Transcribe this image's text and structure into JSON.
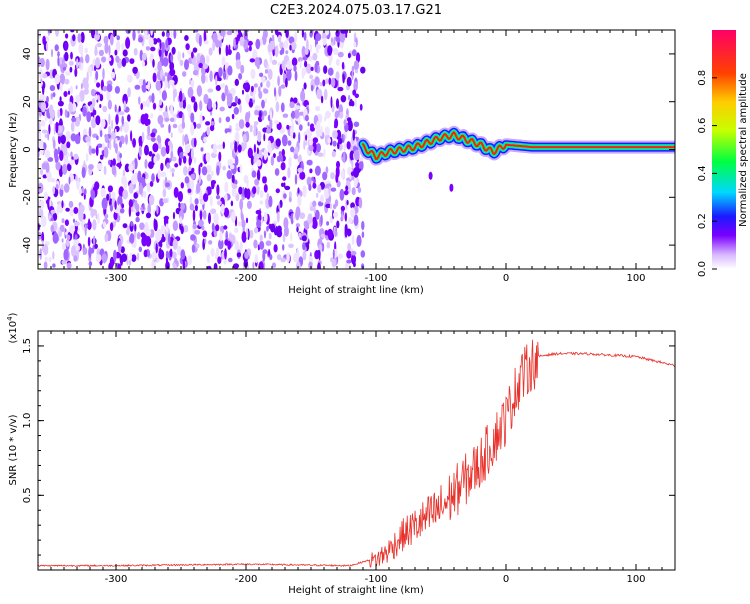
{
  "title": "C2E3.2024.075.03.17.G21",
  "chart_data": [
    {
      "type": "heatmap",
      "xlabel": "Height of straight line (km)",
      "ylabel": "Frequency (Hz)",
      "xlim": [
        -360,
        130
      ],
      "ylim": [
        -50,
        50
      ],
      "xticks": [
        -300,
        -200,
        -100,
        0,
        100
      ],
      "yticks": [
        -40,
        -20,
        0,
        20,
        40
      ],
      "noise_region": [
        -360,
        -110
      ],
      "signal_curve": {
        "x": [
          -110,
          -100,
          -90,
          -80,
          -70,
          -60,
          -50,
          -40,
          -30,
          -20,
          -10,
          0,
          20,
          50,
          80,
          100,
          130
        ],
        "y": [
          1,
          -3,
          -1,
          0,
          1,
          3,
          5,
          6,
          4,
          2,
          -1,
          2,
          1,
          1,
          1,
          1,
          1
        ]
      },
      "colorbar": {
        "label": "Normalized spectral amplitude",
        "range": [
          0,
          1
        ],
        "ticks": [
          "0.0",
          "0.2",
          "0.4",
          "0.6",
          "0.8"
        ]
      },
      "colors": {
        "noise": "#7a00ff",
        "signal_core": "#ff1a1a"
      }
    },
    {
      "type": "line",
      "xlabel": "Height of straight line (km)",
      "ylabel": "SNR (10 * v/v)",
      "multiplier": "(x10",
      "multiplier_exp": "4",
      "multiplier_close": ")",
      "xlim": [
        -360,
        130
      ],
      "ylim": [
        0,
        1.6
      ],
      "xticks": [
        -300,
        -200,
        -100,
        0,
        100
      ],
      "yticks": [
        "0.5",
        "1.0",
        "1.5"
      ],
      "color": "#e8312a",
      "series": [
        {
          "x": [
            -360,
            -300,
            -200,
            -120,
            -100,
            -90,
            -80,
            -70,
            -60,
            -50,
            -40,
            -30,
            -20,
            -10,
            0,
            10,
            20,
            30,
            40,
            60,
            80,
            100,
            110,
            120,
            130
          ],
          "y": [
            0.03,
            0.03,
            0.04,
            0.03,
            0.08,
            0.15,
            0.25,
            0.32,
            0.38,
            0.45,
            0.55,
            0.65,
            0.75,
            0.9,
            1.05,
            1.3,
            1.42,
            1.44,
            1.45,
            1.45,
            1.44,
            1.43,
            1.41,
            1.39,
            1.37
          ]
        }
      ]
    }
  ]
}
